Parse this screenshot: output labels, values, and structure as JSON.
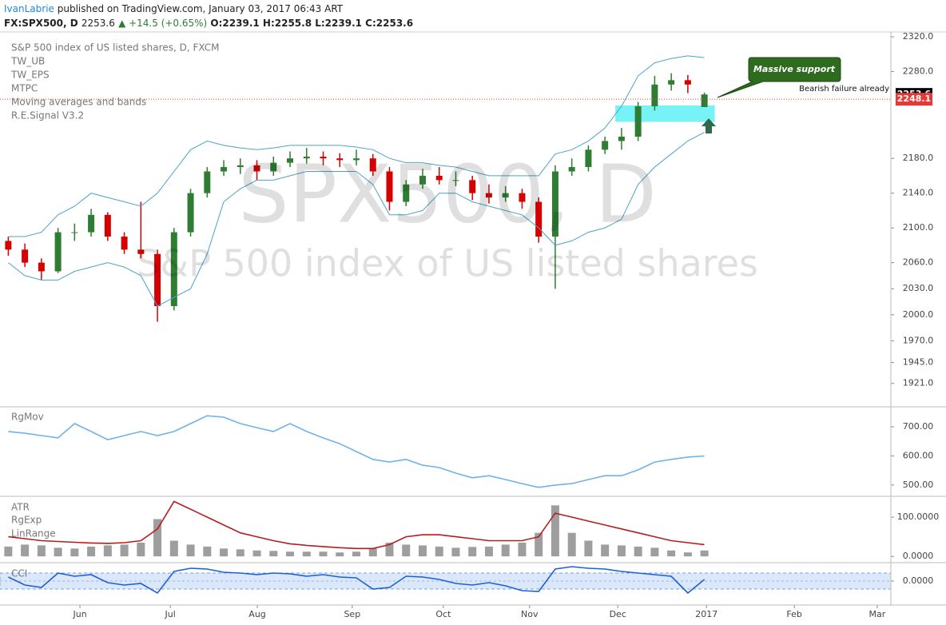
{
  "header": {
    "author": "IvanLabrie",
    "published": "published on TradingView.com, January 03, 2017 06:43 ART",
    "symbol": "FX:SPX500, D",
    "last": "2253.6",
    "change": "▲ +14.5 (+0.65%)",
    "ohlc": "O:2239.1 H:2255.8 L:2239.1 C:2253.6"
  },
  "watermark": {
    "symbol": "SPX500, D",
    "description": "S&P 500 index of US listed shares"
  },
  "annotations": {
    "callout": "Massive support",
    "note": "Bearish failure already"
  },
  "chart_data": [
    {
      "type": "candlestick",
      "title": "S&P 500 index of US listed shares, D, FXCM",
      "studies": [
        "TW_UB",
        "TW_EPS",
        "MTPC",
        "Moving averages and bands",
        "R.E.Signal V3.2"
      ],
      "x": [
        2,
        6,
        10,
        14,
        18,
        22,
        26,
        30,
        34,
        38,
        42,
        46,
        50,
        54,
        58,
        62,
        66,
        70,
        74,
        78,
        82,
        86,
        90,
        94,
        98,
        102,
        106,
        110,
        114,
        118,
        122,
        126,
        130,
        134,
        138,
        142,
        146,
        150,
        154,
        158,
        162,
        166,
        170
      ],
      "ohlc": [
        [
          2085,
          2090,
          2068,
          2075
        ],
        [
          2075,
          2082,
          2055,
          2060
        ],
        [
          2060,
          2065,
          2040,
          2050
        ],
        [
          2050,
          2100,
          2048,
          2095
        ],
        [
          2095,
          2105,
          2085,
          2095
        ],
        [
          2095,
          2122,
          2090,
          2115
        ],
        [
          2115,
          2118,
          2085,
          2090
        ],
        [
          2090,
          2095,
          2070,
          2075
        ],
        [
          2075,
          2130,
          2065,
          2070
        ],
        [
          2070,
          2075,
          1992,
          2010
        ],
        [
          2010,
          2100,
          2005,
          2095
        ],
        [
          2095,
          2145,
          2090,
          2140
        ],
        [
          2140,
          2170,
          2135,
          2165
        ],
        [
          2165,
          2178,
          2160,
          2170
        ],
        [
          2170,
          2180,
          2162,
          2172
        ],
        [
          2172,
          2178,
          2155,
          2165
        ],
        [
          2165,
          2182,
          2160,
          2175
        ],
        [
          2175,
          2188,
          2170,
          2180
        ],
        [
          2180,
          2192,
          2174,
          2182
        ],
        [
          2182,
          2188,
          2172,
          2180
        ],
        [
          2180,
          2186,
          2170,
          2178
        ],
        [
          2178,
          2190,
          2172,
          2180
        ],
        [
          2180,
          2185,
          2160,
          2165
        ],
        [
          2165,
          2170,
          2120,
          2130
        ],
        [
          2130,
          2155,
          2125,
          2150
        ],
        [
          2150,
          2168,
          2145,
          2160
        ],
        [
          2160,
          2170,
          2150,
          2155
        ],
        [
          2155,
          2165,
          2148,
          2155
        ],
        [
          2155,
          2160,
          2132,
          2140
        ],
        [
          2140,
          2150,
          2128,
          2135
        ],
        [
          2135,
          2148,
          2130,
          2140
        ],
        [
          2140,
          2145,
          2122,
          2130
        ],
        [
          2130,
          2135,
          2083,
          2090
        ],
        [
          2090,
          2172,
          2030,
          2165
        ],
        [
          2165,
          2180,
          2160,
          2170
        ],
        [
          2170,
          2195,
          2165,
          2190
        ],
        [
          2190,
          2205,
          2185,
          2200
        ],
        [
          2200,
          2215,
          2190,
          2205
        ],
        [
          2205,
          2245,
          2200,
          2240
        ],
        [
          2240,
          2275,
          2235,
          2265
        ],
        [
          2265,
          2278,
          2258,
          2270
        ],
        [
          2270,
          2276,
          2255,
          2265
        ],
        [
          2239.1,
          2255.8,
          2239.1,
          2253.6
        ]
      ],
      "up_color": "#2e7d32",
      "down_color": "#d50000",
      "series": [
        {
          "color": "#4aa3c8",
          "values": [
            2090,
            2090,
            2095,
            2115,
            2125,
            2140,
            2135,
            2130,
            2125,
            2140,
            2165,
            2190,
            2200,
            2195,
            2192,
            2190,
            2192,
            2195,
            2195,
            2195,
            2195,
            2193,
            2190,
            2180,
            2175,
            2175,
            2172,
            2170,
            2165,
            2160,
            2160,
            2160,
            2160,
            2185,
            2190,
            2200,
            2215,
            2240,
            2275,
            2290,
            2295,
            2298,
            2296
          ]
        },
        {
          "color": "#4aa3c8",
          "values": [
            2060,
            2045,
            2040,
            2040,
            2050,
            2055,
            2060,
            2055,
            2045,
            2010,
            2020,
            2030,
            2070,
            2130,
            2145,
            2155,
            2155,
            2160,
            2165,
            2165,
            2165,
            2165,
            2150,
            2115,
            2115,
            2120,
            2140,
            2140,
            2130,
            2125,
            2120,
            2115,
            2100,
            2080,
            2085,
            2095,
            2100,
            2110,
            2150,
            2170,
            2185,
            2200,
            2210
          ]
        }
      ],
      "zone": {
        "x": [
          148.5,
          172.5
        ],
        "y": [
          2222,
          2241
        ],
        "color": "#5ff0f5"
      },
      "price_labels": [
        {
          "value": 2253.6,
          "label": "2253.6",
          "color": "#000000"
        },
        {
          "value": 2248.1,
          "label": "2248.1",
          "color": "#e53935"
        }
      ],
      "xlim": [
        0,
        215
      ],
      "xticks": [
        {
          "value": 19.3,
          "label": "Jun"
        },
        {
          "value": 41.1,
          "label": "Jul"
        },
        {
          "value": 62.1,
          "label": "Aug"
        },
        {
          "value": 85.0,
          "label": "Sep"
        },
        {
          "value": 107.0,
          "label": "Oct"
        },
        {
          "value": 127.8,
          "label": "Nov"
        },
        {
          "value": 149.1,
          "label": "Dec"
        },
        {
          "value": 170.5,
          "label": "2017"
        },
        {
          "value": 191.7,
          "label": "Feb"
        },
        {
          "value": 211.7,
          "label": "Mar"
        }
      ],
      "ylim": [
        1895,
        2325.5
      ],
      "yticks": [
        {
          "value": 2320,
          "label": "2320.0"
        },
        {
          "value": 2280,
          "label": "2280.0"
        },
        {
          "value": 2180,
          "label": "2180.0"
        },
        {
          "value": 2140,
          "label": "2140.0"
        },
        {
          "value": 2100,
          "label": "2100.0"
        },
        {
          "value": 2060,
          "label": "2060.0"
        },
        {
          "value": 2030,
          "label": "2030.0"
        },
        {
          "value": 2000,
          "label": "2000.0"
        },
        {
          "value": 1970,
          "label": "1970.0"
        },
        {
          "value": 1945,
          "label": "1945.0"
        },
        {
          "value": 1921,
          "label": "1921.0"
        }
      ]
    },
    {
      "type": "line",
      "title": "RgMov",
      "series": [
        {
          "color": "#6fb2ea",
          "values": [
            684,
            678,
            670,
            662,
            711,
            684,
            656,
            670,
            684,
            670,
            684,
            711,
            738,
            733,
            711,
            697,
            684,
            711,
            684,
            662,
            642,
            615,
            588,
            579,
            588,
            568,
            560,
            541,
            525,
            532,
            519,
            505,
            492,
            500,
            505,
            519,
            532,
            532,
            552,
            579,
            588,
            596,
            600
          ]
        }
      ],
      "ylim": [
        464,
        766
      ],
      "yticks": [
        {
          "value": 700,
          "label": "700.00"
        },
        {
          "value": 600,
          "label": "600.00"
        },
        {
          "value": 500,
          "label": "500.00"
        }
      ]
    },
    {
      "type": "bar",
      "title": "ATR",
      "studies": [
        "RgExp",
        "LinRange"
      ],
      "values": [
        25,
        30,
        28,
        22,
        20,
        25,
        28,
        30,
        35,
        95,
        40,
        30,
        25,
        20,
        18,
        15,
        14,
        12,
        12,
        12,
        10,
        12,
        20,
        35,
        30,
        28,
        25,
        22,
        24,
        25,
        30,
        35,
        60,
        130,
        60,
        40,
        30,
        28,
        25,
        22,
        15,
        10,
        15
      ],
      "color": "#9e9e9e",
      "series": [
        {
          "color": "#b71c1c",
          "values": [
            50,
            45,
            40,
            38,
            36,
            34,
            33,
            35,
            40,
            70,
            140,
            120,
            100,
            80,
            60,
            50,
            40,
            32,
            28,
            25,
            22,
            20,
            20,
            30,
            50,
            55,
            55,
            50,
            45,
            40,
            40,
            40,
            50,
            110,
            100,
            90,
            80,
            70,
            60,
            50,
            40,
            35,
            30
          ]
        }
      ],
      "ylim": [
        -14,
        149
      ],
      "yticks": [
        {
          "value": 100,
          "label": "100.0000"
        },
        {
          "value": 0,
          "label": "0.0000"
        }
      ]
    },
    {
      "type": "line",
      "title": "CCI",
      "band": [
        -100,
        100
      ],
      "band_color": "#dbe8fb",
      "series": [
        {
          "color": "#1e5fd6",
          "values": [
            50,
            -50,
            -80,
            100,
            60,
            80,
            -20,
            -50,
            -30,
            -150,
            120,
            160,
            150,
            110,
            100,
            80,
            100,
            90,
            60,
            80,
            50,
            40,
            -100,
            -80,
            60,
            50,
            20,
            -30,
            -50,
            -20,
            -60,
            -120,
            -130,
            150,
            180,
            160,
            150,
            120,
            100,
            80,
            60,
            -150,
            20
          ]
        }
      ],
      "ylim": [
        -300,
        210
      ],
      "yticks": [
        {
          "value": 0,
          "label": "0.0000"
        }
      ]
    }
  ]
}
